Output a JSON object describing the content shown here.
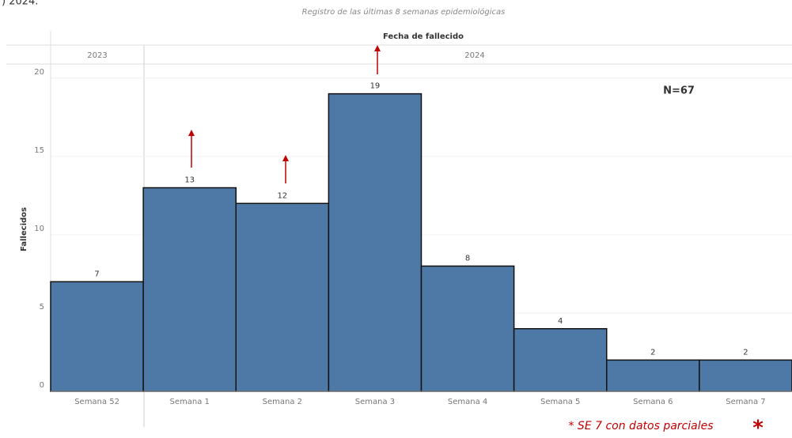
{
  "chart_data": {
    "type": "bar",
    "title_fragment": ") 2024.",
    "subtitle": "Registro de las últimas 8 semanas epidemiológicas",
    "header_title": "Fecha de fallecido",
    "year_headers": [
      "2023",
      "2024"
    ],
    "y_label": "Fallecidos",
    "annotation": "N=67",
    "footnote": "* SE 7 con datos parciales",
    "footnote_mark": "*",
    "categories": [
      "Semana 52",
      "Semana 1",
      "Semana 2",
      "Semana 3",
      "Semana 4",
      "Semana 5",
      "Semana 6",
      "Semana 7"
    ],
    "values": [
      7,
      13,
      12,
      19,
      8,
      4,
      2,
      2
    ],
    "color": "#4e79a7",
    "ylim": [
      0,
      21
    ],
    "yticks": [
      0,
      5,
      10,
      15,
      20
    ],
    "grid": true
  }
}
